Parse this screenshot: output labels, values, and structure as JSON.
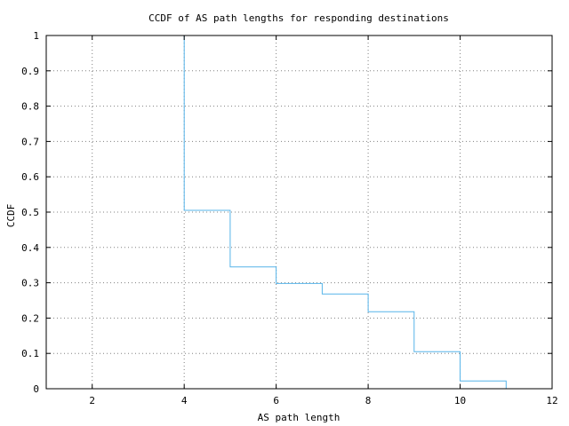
{
  "chart_data": {
    "type": "line",
    "title": "CCDF of AS path lengths for responding destinations",
    "xlabel": "AS path length",
    "ylabel": "CCDF",
    "xlim": [
      1,
      12
    ],
    "ylim": [
      0,
      1
    ],
    "x_ticks": [
      2,
      4,
      6,
      8,
      10,
      12
    ],
    "y_ticks": [
      0,
      0.1,
      0.2,
      0.3,
      0.4,
      0.5,
      0.6,
      0.7,
      0.8,
      0.9,
      1
    ],
    "grid": true,
    "legend": "none",
    "line_style": "step",
    "series": [
      {
        "color": "#56B4E9",
        "points": [
          {
            "x": 4,
            "y": 1.0
          },
          {
            "x": 4,
            "y": 0.505
          },
          {
            "x": 5,
            "y": 0.505
          },
          {
            "x": 5,
            "y": 0.345
          },
          {
            "x": 6,
            "y": 0.345
          },
          {
            "x": 6,
            "y": 0.298
          },
          {
            "x": 7,
            "y": 0.298
          },
          {
            "x": 7,
            "y": 0.268
          },
          {
            "x": 8,
            "y": 0.268
          },
          {
            "x": 8,
            "y": 0.218
          },
          {
            "x": 9,
            "y": 0.218
          },
          {
            "x": 9,
            "y": 0.105
          },
          {
            "x": 10,
            "y": 0.105
          },
          {
            "x": 10,
            "y": 0.022
          },
          {
            "x": 11,
            "y": 0.022
          },
          {
            "x": 11,
            "y": 0.0
          }
        ]
      }
    ]
  }
}
